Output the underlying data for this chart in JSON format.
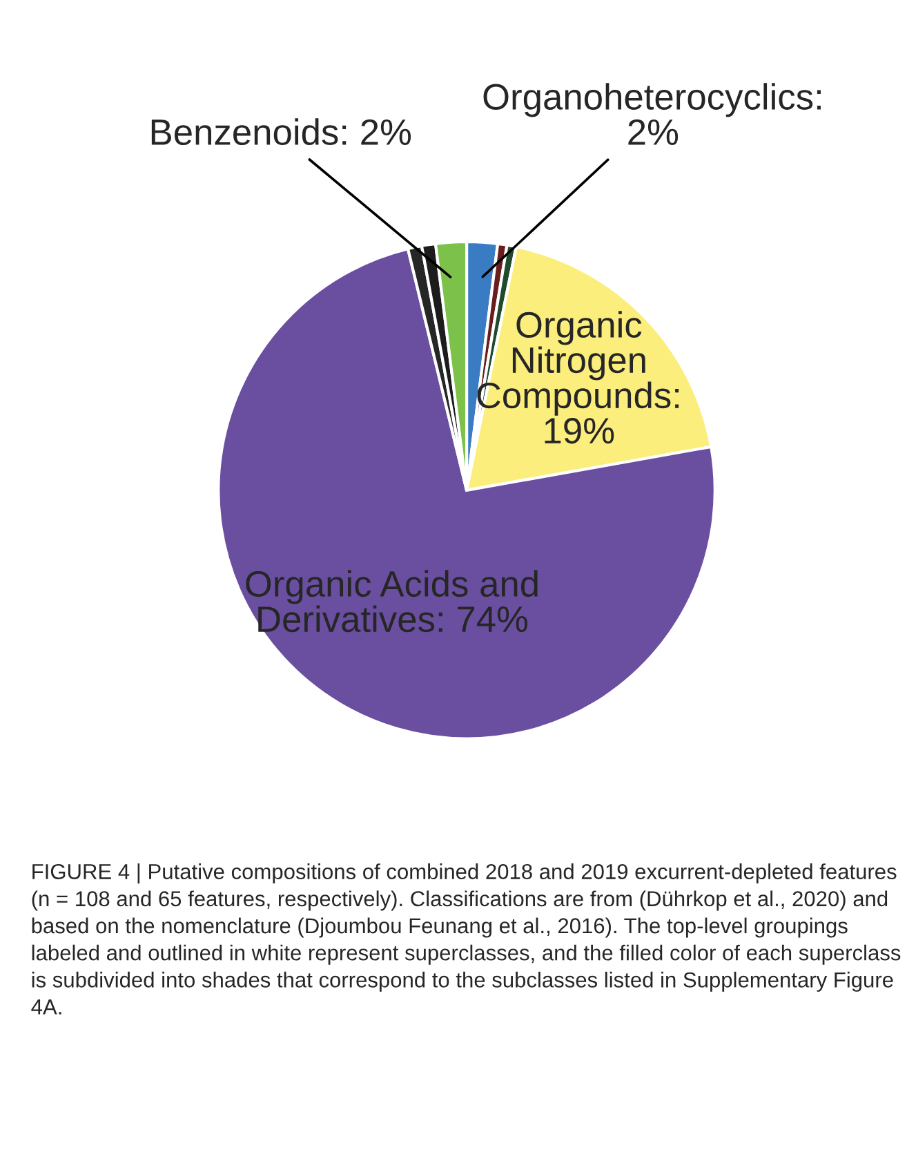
{
  "chart_data": {
    "type": "pie",
    "categories": [
      "Organoheterocyclics:\n2%",
      null,
      null,
      "Organic\nNitrogen\nCompounds:\n19%",
      "Organic Acids and\nDerivatives: 74%",
      null,
      null,
      "Benzenoids: 2%"
    ],
    "values": [
      2,
      0.6,
      0.6,
      19,
      74,
      0.9,
      0.9,
      2
    ],
    "colors": [
      "#3a7cc4",
      "#6b1c1c",
      "#1f4a2c",
      "#fbee7c",
      "#6a4fa0",
      "#262626",
      "#1c1c1c",
      "#7cc24a"
    ],
    "annotations": [
      "FIGURE 4 | Putative compositions of combined 2018 and 2019 excurrent-depleted features (n = 108 and 65 features, respectively). Classifications are from (Dührkop et al., 2020) and based on the nomenclature (Djoumbou Feunang et al., 2016). The top-level groupings labeled and outlined in white represent superclasses, and the filled color of each superclass is subdivided into shades that correspond to the subclasses listed in Supplementary Figure 4A."
    ]
  }
}
